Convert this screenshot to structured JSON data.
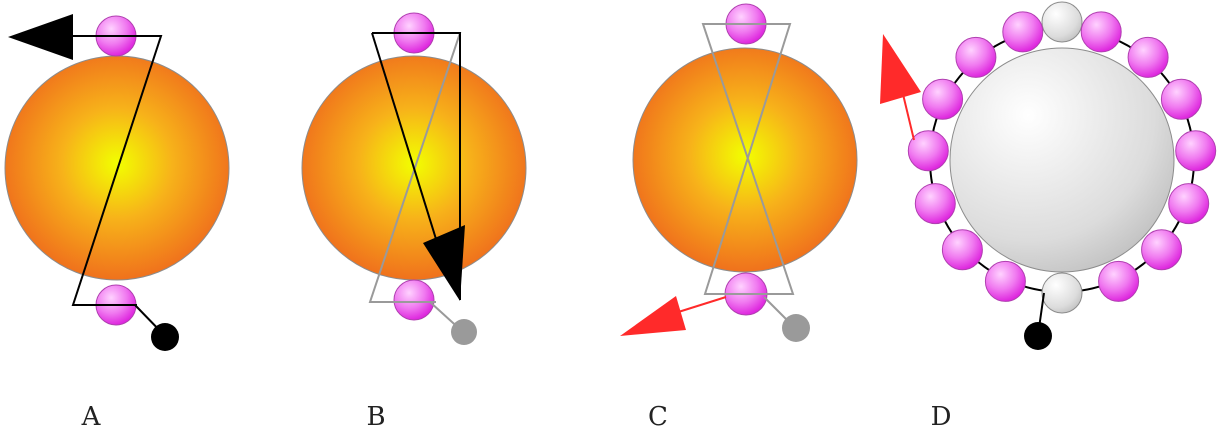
{
  "panels": [
    {
      "id": "A",
      "label": "A"
    },
    {
      "id": "B",
      "label": "B"
    },
    {
      "id": "C",
      "label": "C"
    },
    {
      "id": "D",
      "label": "D"
    }
  ],
  "colors": {
    "big_ball_center": "#f2ff00",
    "big_ball_edge": "#ef6a1c",
    "bead_light": "#ffd2ff",
    "bead_dark": "#dd22dd",
    "grey_ball_light": "#ffffff",
    "grey_ball_dark": "#bdbdbd",
    "arrow_black": "#000000",
    "arrow_red": "#ff2a2a",
    "line_grey": "#9a9a9a",
    "knot_black": "#000000",
    "knot_grey": "#9a9a9a"
  }
}
